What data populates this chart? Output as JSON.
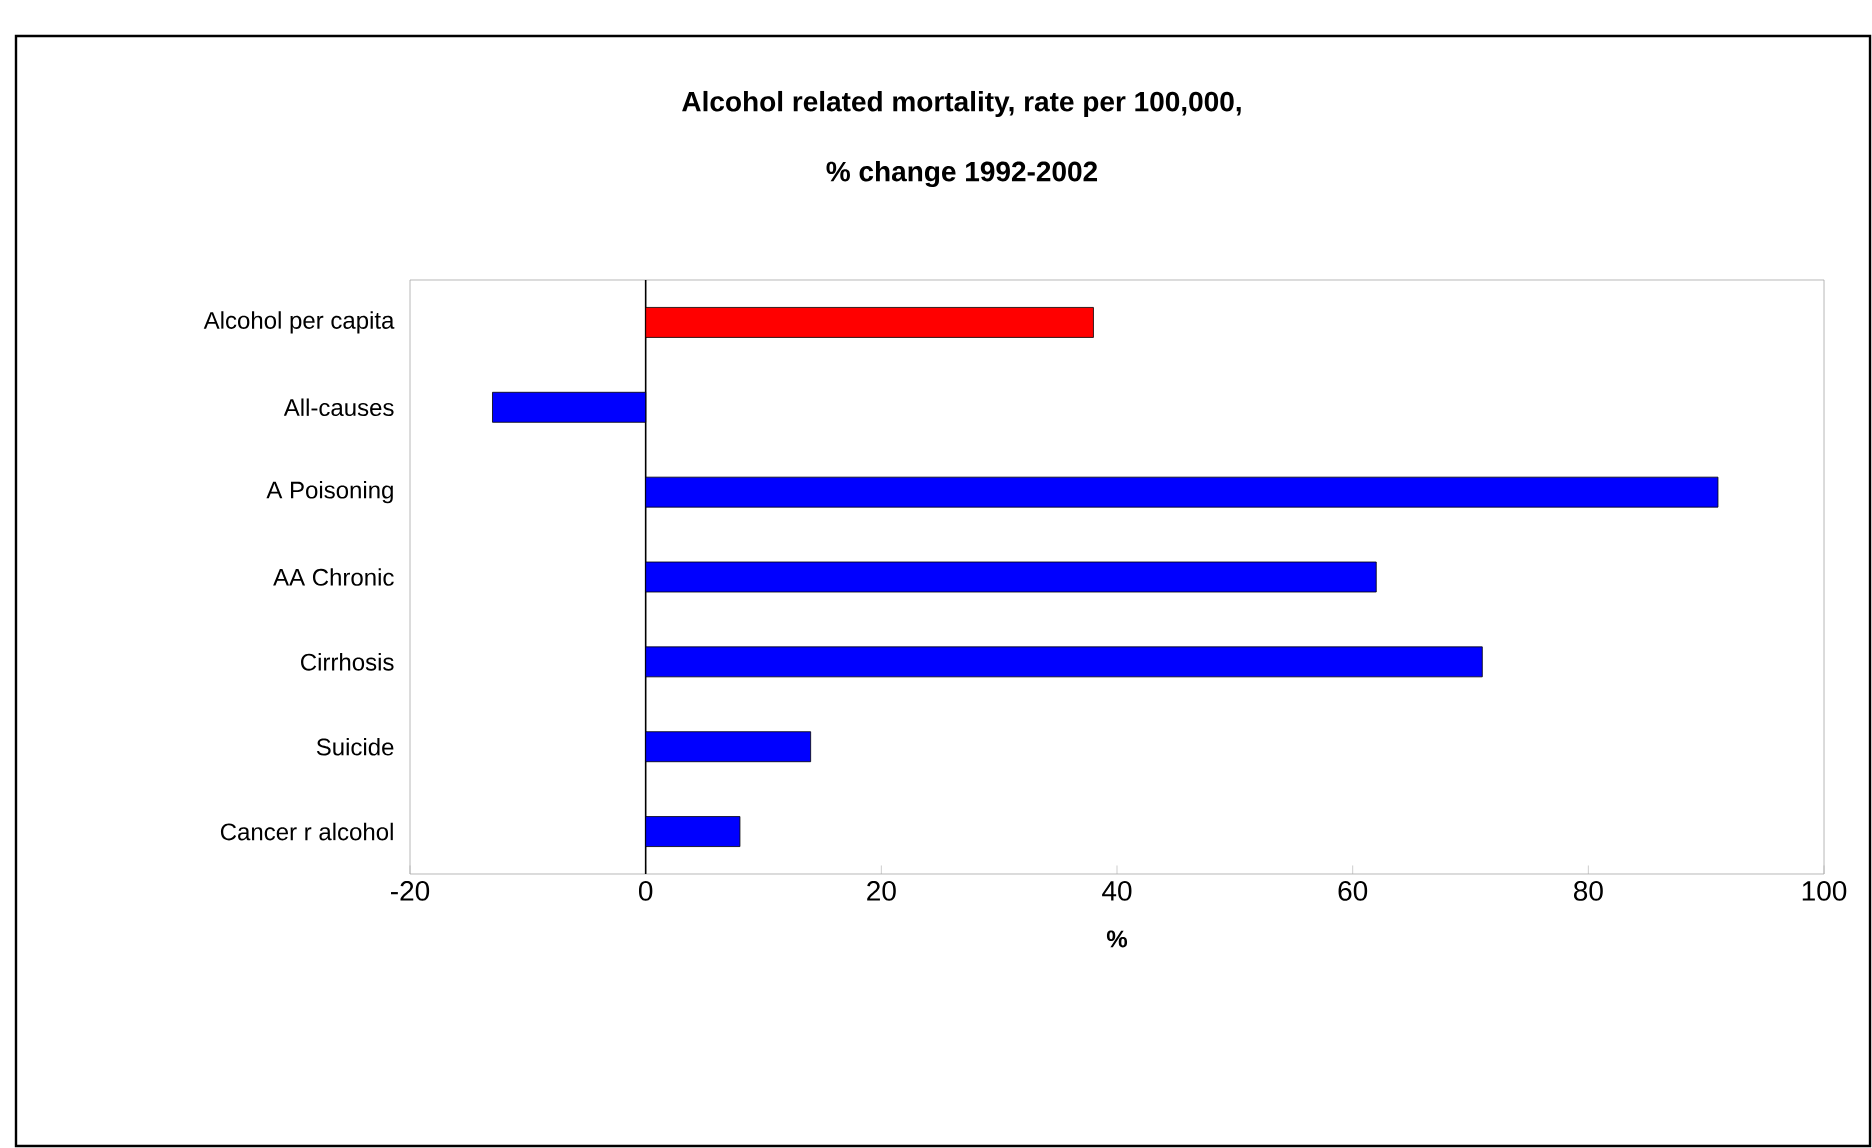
{
  "chart_data": {
    "type": "bar",
    "orientation": "horizontal",
    "title": "Alcohol related mortality, rate per 100,000,",
    "subtitle": "% change 1992-2002",
    "xlabel": "%",
    "categories": [
      "Alcohol per capita",
      "All-causes",
      "A Poisoning",
      "AA Chronic",
      "Cirrhosis",
      "Suicide",
      "Cancer r alcohol"
    ],
    "values": [
      38,
      -13,
      91,
      62,
      71,
      14,
      8
    ],
    "colors": [
      "#ff0000",
      "#0000ff",
      "#0000ff",
      "#0000ff",
      "#0000ff",
      "#0000ff",
      "#0000ff"
    ],
    "xlim": [
      -20,
      100
    ],
    "xticks": [
      -20,
      0,
      20,
      40,
      60,
      80,
      100
    ],
    "ref_lines": [
      {
        "axis": "x",
        "value": 0,
        "color": "#000000"
      }
    ]
  }
}
